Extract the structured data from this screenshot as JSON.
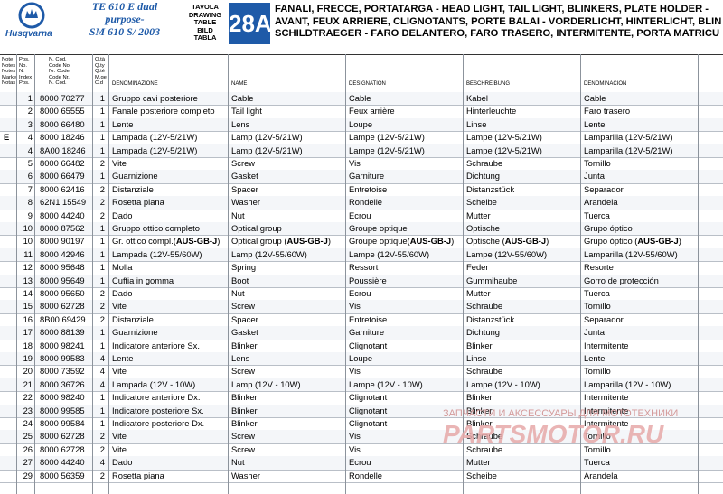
{
  "header": {
    "brand": "Husqvarna",
    "model_lines": [
      "TE 610 E dual",
      "purpose-",
      "SM 610 S/ 2003"
    ],
    "table_label_lines": [
      "TAVOLA",
      "DRAWING",
      "TABLE",
      "BILD",
      "TABLA"
    ],
    "table_number": "28A",
    "title_lines": [
      "FANALI, FRECCE, PORTATARGA - HEAD LIGHT, TAIL LIGHT, BLINKERS, PLATE HOLDER -",
      "AVANT, FEUX ARRIERE, CLIGNOTANTS, PORTE BALAI - VORDERLICHT, HINTERLICHT, BLIN",
      "SCHILDTRAEGER - FARO DELANTERO, FARO TRASERO, INTERMITENTE, PORTA MATRICU"
    ],
    "brand_color": "#1e5aa8"
  },
  "columns": {
    "note": "Note\nNotes\nNotes\nMarke\nNotas",
    "pos": "Pos.\nNo.\nN.\nIndex\nPos.",
    "code": "N. Cod.\nCode No.\nNr. Code\nCode Nr.\nN. Cod.",
    "qty": "Q.tà\nQ.ty\nQ.té\nM.ge\nC.d",
    "italian": "DENOMINAZIONE",
    "english": "NAME",
    "french": "DESIGNATION",
    "german": "BESCHREIBUNG",
    "spanish": "DENOMINACION"
  },
  "rows": [
    {
      "note": "",
      "pos": "1",
      "code": "8000 70277",
      "qty": "1",
      "it": "Gruppo cavi posteriore",
      "en": "Cable",
      "fr": "Cable",
      "de": "Kabel",
      "es": "Cable"
    },
    {
      "note": "",
      "pos": "2",
      "code": "8000 65555",
      "qty": "1",
      "it": "Fanale posteriore completo",
      "en": "Tail light",
      "fr": "Feux arrière",
      "de": "Hinterleuchte",
      "es": "Faro trasero"
    },
    {
      "note": "",
      "pos": "3",
      "code": "8000 66480",
      "qty": "1",
      "it": "Lente",
      "en": "Lens",
      "fr": "Loupe",
      "de": "Linse",
      "es": "Lente"
    },
    {
      "note": "E",
      "pos": "4",
      "code": "8000 18246",
      "qty": "1",
      "it": "Lampada  (12V-5/21W)",
      "en": "Lamp (12V-5/21W)",
      "fr": "Lampe (12V-5/21W)",
      "de": "Lampe  (12V-5/21W)",
      "es": "Lamparilla (12V-5/21W)"
    },
    {
      "note": "",
      "pos": "4",
      "code": "8A00 18246",
      "qty": "1",
      "it": "Lampada  (12V-5/21W)",
      "en": "Lamp (12V-5/21W)",
      "fr": "Lampe (12V-5/21W)",
      "de": "Lampe  (12V-5/21W)",
      "es": "Lamparilla (12V-5/21W)"
    },
    {
      "note": "",
      "pos": "5",
      "code": "8000 66482",
      "qty": "2",
      "it": "Vite",
      "en": "Screw",
      "fr": "Vis",
      "de": "Schraube",
      "es": "Tornillo"
    },
    {
      "note": "",
      "pos": "6",
      "code": "8000 66479",
      "qty": "1",
      "it": "Guarnizione",
      "en": "Gasket",
      "fr": "Garniture",
      "de": "Dichtung",
      "es": "Junta"
    },
    {
      "note": "",
      "pos": "7",
      "code": "8000 62416",
      "qty": "2",
      "it": "Distanziale",
      "en": "Spacer",
      "fr": "Entretoise",
      "de": "Distanzstück",
      "es": "Separador"
    },
    {
      "note": "",
      "pos": "8",
      "code": "62N1 15549",
      "qty": "2",
      "it": "Rosetta piana",
      "en": "Washer",
      "fr": "Rondelle",
      "de": "Scheibe",
      "es": "Arandela"
    },
    {
      "note": "",
      "pos": "9",
      "code": "8000 44240",
      "qty": "2",
      "it": "Dado",
      "en": "Nut",
      "fr": "Ecrou",
      "de": "Mutter",
      "es": "Tuerca"
    },
    {
      "note": "",
      "pos": "10",
      "code": "8000 87562",
      "qty": "1",
      "it": "Gruppo ottico completo",
      "en": "Optical group",
      "fr": "Groupe optique",
      "de": "Optische",
      "es": "Grupo óptico"
    },
    {
      "note": "",
      "pos": "10",
      "code": "8000 90197",
      "qty": "1",
      "it": "Gr. ottico compl.(AUS-GB-J)",
      "en": "Optical group (AUS-GB-J)",
      "fr": "Groupe optique(AUS-GB-J)",
      "de": "Optische (AUS-GB-J)",
      "es": "Grupo óptico (AUS-GB-J)"
    },
    {
      "note": "",
      "pos": "11",
      "code": "8000 42946",
      "qty": "1",
      "it": "Lampada  (12V-55/60W)",
      "en": "Lamp (12V-55/60W)",
      "fr": "Lampe (12V-55/60W)",
      "de": "Lampe  (12V-55/60W)",
      "es": "Lamparilla (12V-55/60W)"
    },
    {
      "note": "",
      "pos": "12",
      "code": "8000 95648",
      "qty": "1",
      "it": "Molla",
      "en": "Spring",
      "fr": "Ressort",
      "de": "Feder",
      "es": "Resorte"
    },
    {
      "note": "",
      "pos": "13",
      "code": "8000 95649",
      "qty": "1",
      "it": "Cuffia in gomma",
      "en": "Boot",
      "fr": "Poussière",
      "de": "Gummihaube",
      "es": "Gorro de protección"
    },
    {
      "note": "",
      "pos": "14",
      "code": "8000 95650",
      "qty": "2",
      "it": "Dado",
      "en": "Nut",
      "fr": "Ecrou",
      "de": "Mutter",
      "es": "Tuerca"
    },
    {
      "note": "",
      "pos": "15",
      "code": "8000 62728",
      "qty": "2",
      "it": "Vite",
      "en": "Screw",
      "fr": "Vis",
      "de": "Schraube",
      "es": "Tornillo"
    },
    {
      "note": "",
      "pos": "16",
      "code": "8B00 69429",
      "qty": "2",
      "it": "Distanziale",
      "en": "Spacer",
      "fr": "Entretoise",
      "de": "Distanzstück",
      "es": "Separador"
    },
    {
      "note": "",
      "pos": "17",
      "code": "8000 88139",
      "qty": "1",
      "it": "Guarnizione",
      "en": "Gasket",
      "fr": "Garniture",
      "de": "Dichtung",
      "es": "Junta"
    },
    {
      "note": "",
      "pos": "18",
      "code": "8000 98241",
      "qty": "1",
      "it": "Indicatore anteriore Sx.",
      "en": "Blinker",
      "fr": "Clignotant",
      "de": "Blinker",
      "es": "Intermitente"
    },
    {
      "note": "",
      "pos": "19",
      "code": "8000 99583",
      "qty": "4",
      "it": "Lente",
      "en": "Lens",
      "fr": "Loupe",
      "de": "Linse",
      "es": "Lente"
    },
    {
      "note": "",
      "pos": "20",
      "code": "8000 73592",
      "qty": "4",
      "it": "Vite",
      "en": "Screw",
      "fr": "Vis",
      "de": "Schraube",
      "es": "Tornillo"
    },
    {
      "note": "",
      "pos": "21",
      "code": "8000 36726",
      "qty": "4",
      "it": "Lampada (12V - 10W)",
      "en": "Lamp (12V - 10W)",
      "fr": "Lampe (12V - 10W)",
      "de": "Lampe  (12V - 10W)",
      "es": "Lamparilla (12V - 10W)"
    },
    {
      "note": "",
      "pos": "22",
      "code": "8000 98240",
      "qty": "1",
      "it": "Indicatore anteriore Dx.",
      "en": "Blinker",
      "fr": "Clignotant",
      "de": "Blinker",
      "es": "Intermitente"
    },
    {
      "note": "",
      "pos": "23",
      "code": "8000 99585",
      "qty": "1",
      "it": "Indicatore posteriore Sx.",
      "en": "Blinker",
      "fr": "Clignotant",
      "de": "Blinker",
      "es": "Intermitente"
    },
    {
      "note": "",
      "pos": "24",
      "code": "8000 99584",
      "qty": "1",
      "it": "Indicatore posteriore Dx.",
      "en": "Blinker",
      "fr": "Clignotant",
      "de": "Blinker",
      "es": "Intermitente"
    },
    {
      "note": "",
      "pos": "25",
      "code": "8000 62728",
      "qty": "2",
      "it": "Vite",
      "en": "Screw",
      "fr": "Vis",
      "de": "Schraube",
      "es": "Tornillo"
    },
    {
      "note": "",
      "pos": "26",
      "code": "8000 62728",
      "qty": "2",
      "it": "Vite",
      "en": "Screw",
      "fr": "Vis",
      "de": "Schraube",
      "es": "Tornillo"
    },
    {
      "note": "",
      "pos": "27",
      "code": "8000 44240",
      "qty": "4",
      "it": "Dado",
      "en": "Nut",
      "fr": "Ecrou",
      "de": "Mutter",
      "es": "Tuerca"
    },
    {
      "note": "",
      "pos": "29",
      "code": "8000 56359",
      "qty": "2",
      "it": "Rosetta piana",
      "en": "Washer",
      "fr": "Rondelle",
      "de": "Scheibe",
      "es": "Arandela"
    }
  ],
  "watermark": {
    "line1": "ЗАПЧАСТИ И АКСЕССУАРЫ ДЛЯ МОТОТЕХНИКИ",
    "line2": "PARTSMOTOR.RU"
  }
}
